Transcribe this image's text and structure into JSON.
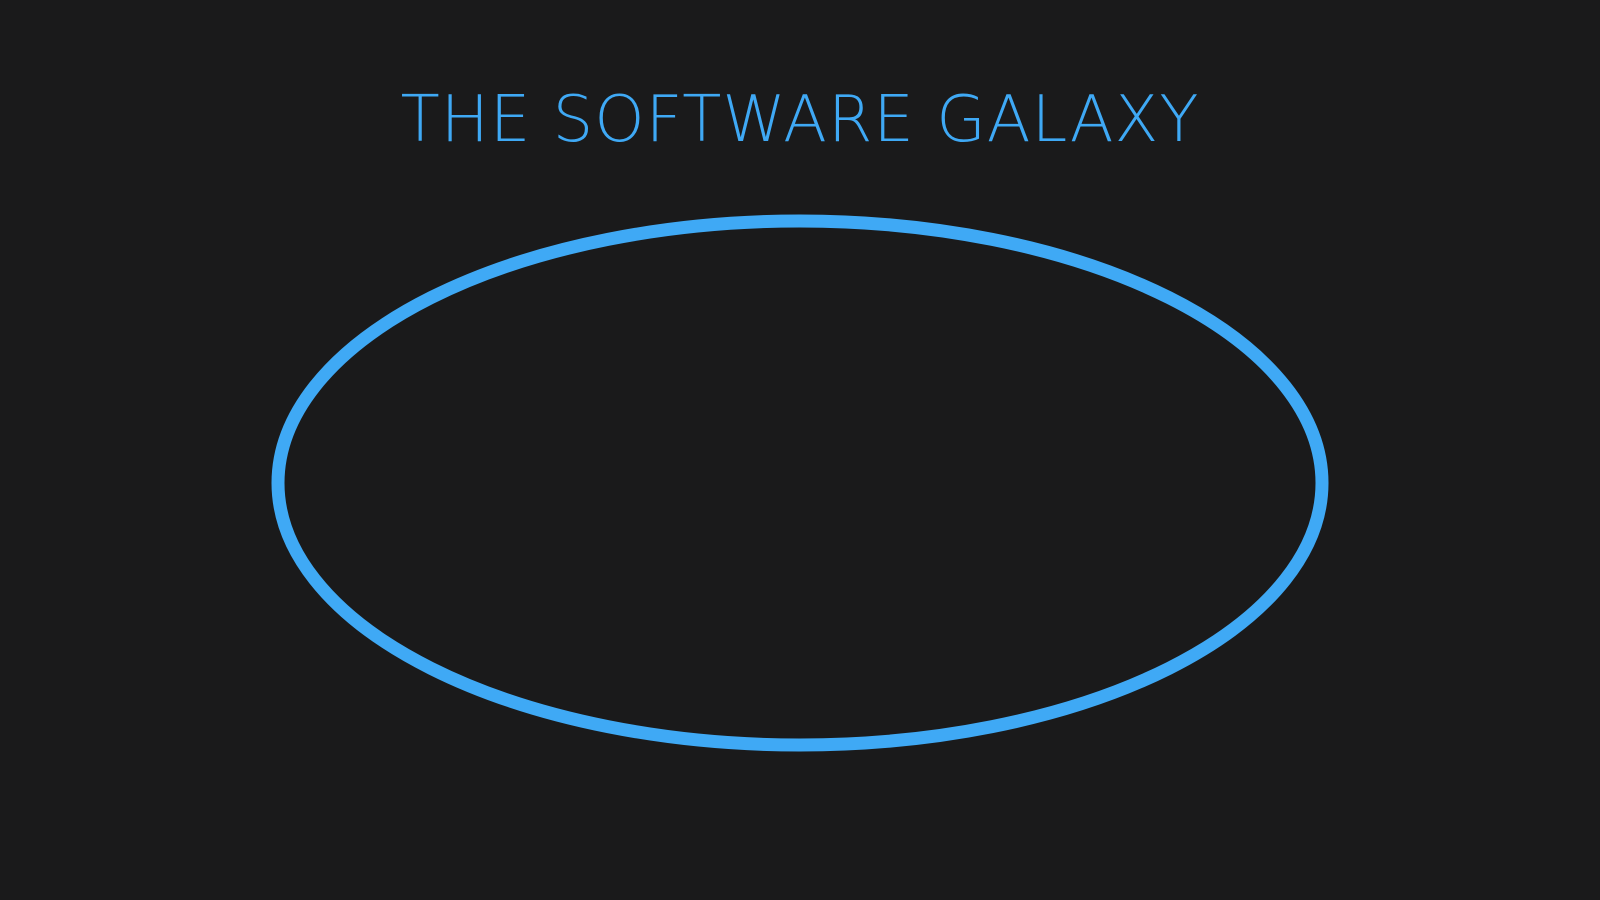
{
  "slide": {
    "title": "THE SOFTWARE GALAXY"
  },
  "colors": {
    "background": "#1a1a1b",
    "accent": "#3fa9f5"
  },
  "shapes": {
    "galaxy": "ellipse-outline"
  }
}
